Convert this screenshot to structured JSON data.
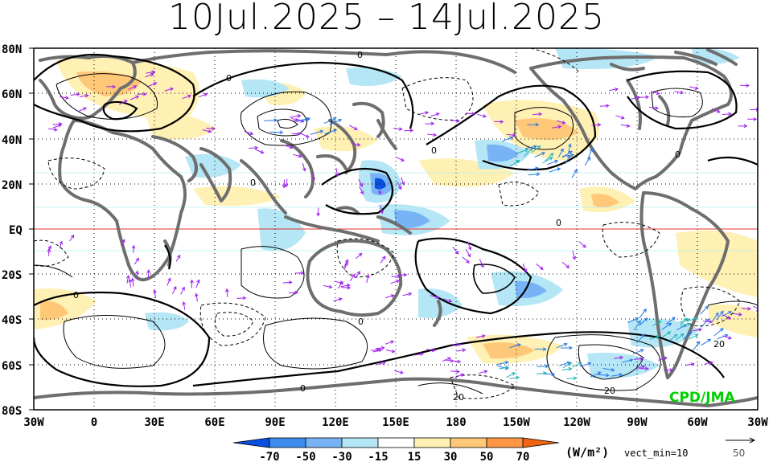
{
  "title": "10Jul.2025 – 14Jul.2025",
  "credit": "CPD/JMA",
  "lat_labels": [
    "80N",
    "60N",
    "40N",
    "20N",
    "EQ",
    "20S",
    "40S",
    "60S",
    "80S"
  ],
  "lon_labels": [
    "30W",
    "0",
    "30E",
    "60E",
    "90E",
    "120E",
    "150E",
    "180",
    "150W",
    "120W",
    "90W",
    "60W",
    "30W"
  ],
  "colorbar": {
    "ticks": [
      "-70",
      "-50",
      "-30",
      "-15",
      "15",
      "30",
      "50",
      "70"
    ],
    "colors": [
      "#0a50e0",
      "#3c8cf0",
      "#78b4f5",
      "#b4e6f5",
      "#ffffff",
      "#fff0b4",
      "#ffc878",
      "#ff9646",
      "#f06414"
    ],
    "unit": "(W/m²)",
    "vect_min": "vect_min=10"
  },
  "ref_vector": {
    "value": "50"
  },
  "contour_labels": [
    "0",
    "0",
    "0",
    "0",
    "0",
    "0",
    "0",
    "0",
    "0",
    "20",
    "20",
    "20"
  ],
  "colors": {
    "land": "#6e6e6e",
    "vector_weak": "#a020f0",
    "vector_strong": "#2878e8",
    "vector_teal": "#20b4b4",
    "equator": "#e03030",
    "credit": "#00d000"
  }
}
